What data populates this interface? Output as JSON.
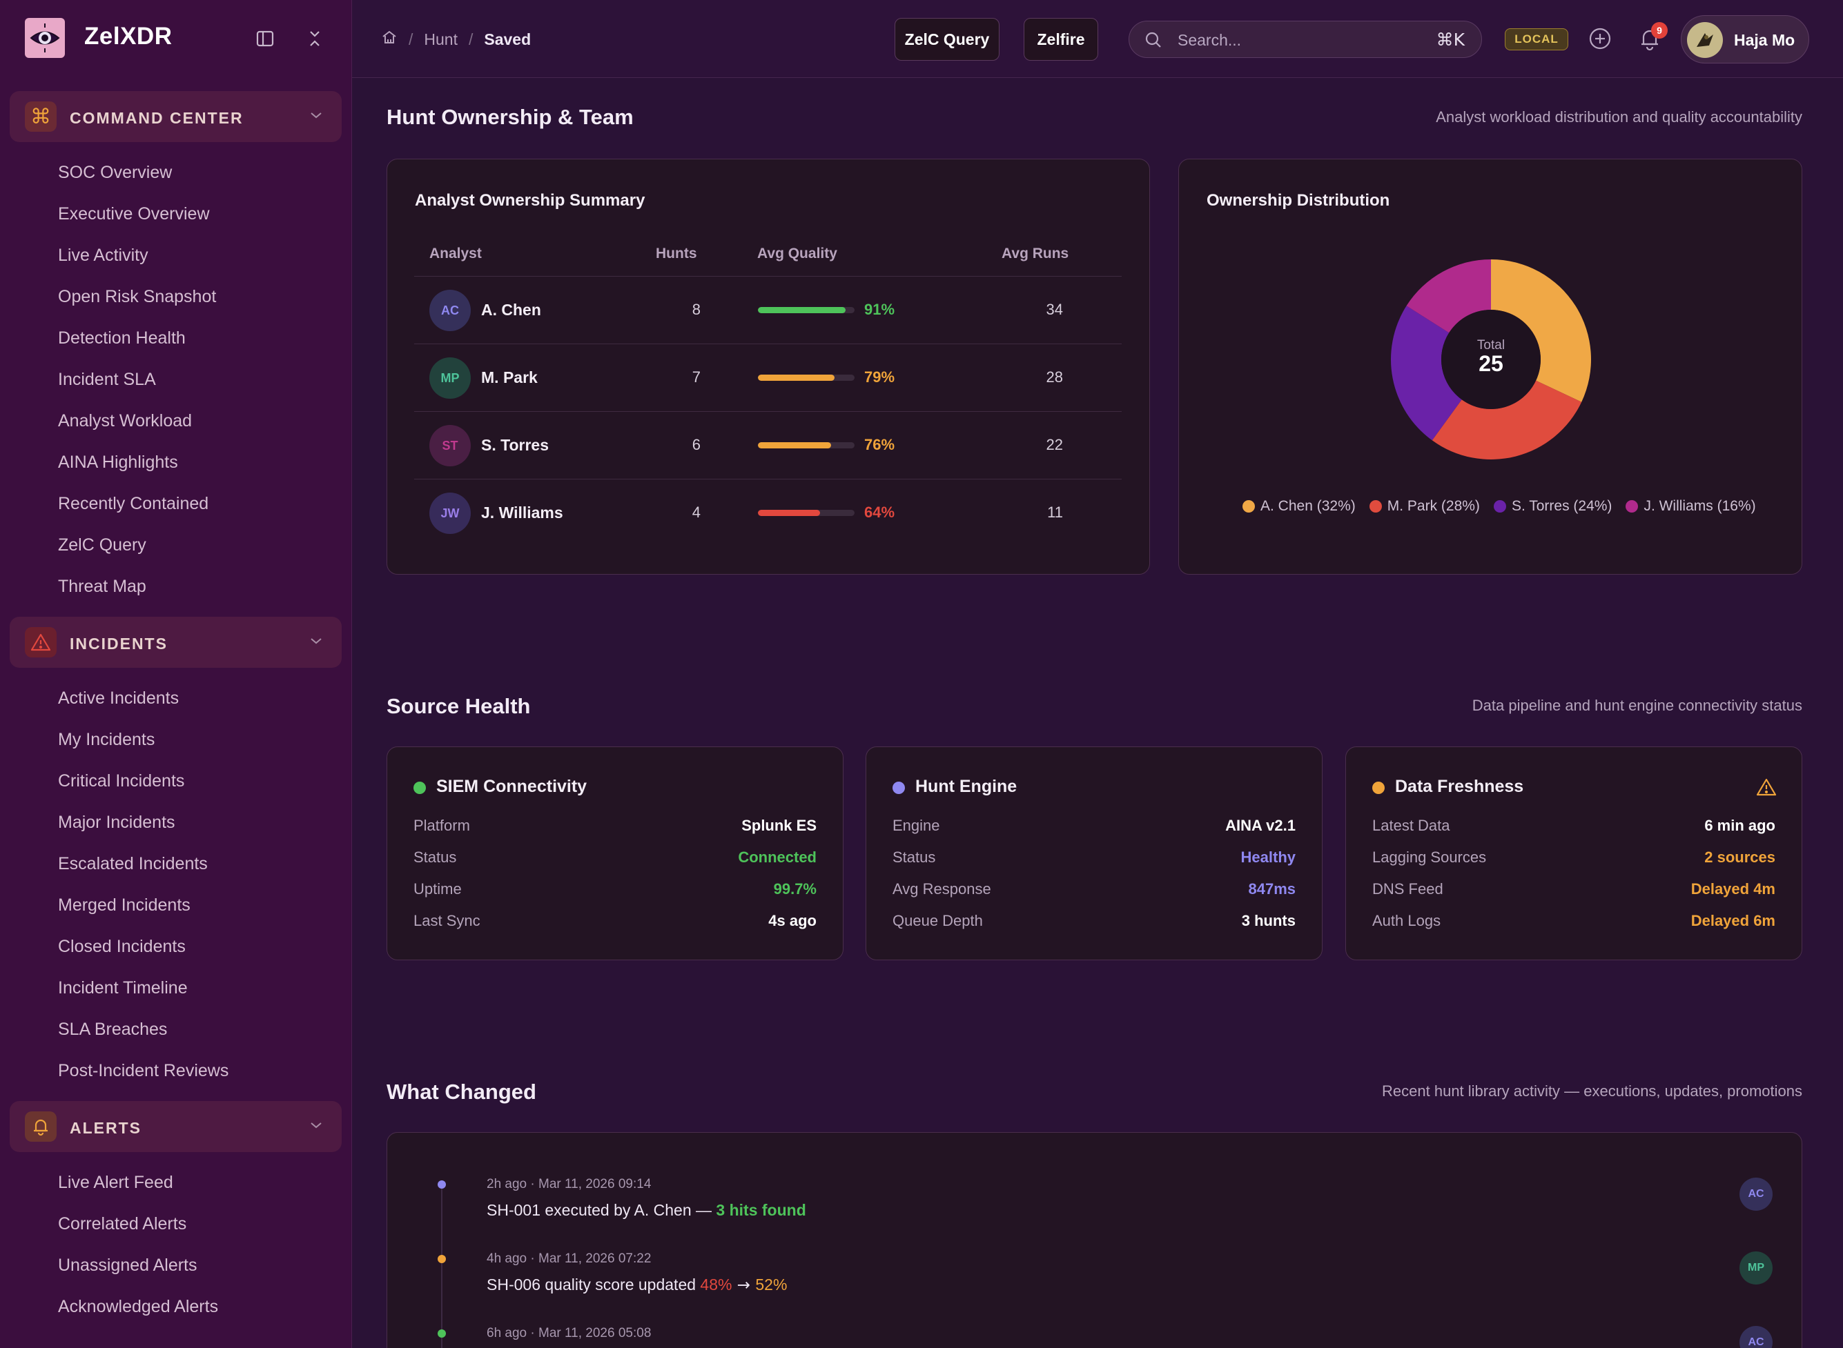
{
  "app": {
    "name": "ZelXDR"
  },
  "sidebar": {
    "groups": [
      {
        "label": "COMMAND CENTER",
        "items": [
          "SOC Overview",
          "Executive Overview",
          "Live Activity",
          "Open Risk Snapshot",
          "Detection Health",
          "Incident SLA",
          "Analyst Workload",
          "AINA Highlights",
          "Recently Contained",
          "ZelC Query",
          "Threat Map"
        ]
      },
      {
        "label": "INCIDENTS",
        "items": [
          "Active Incidents",
          "My Incidents",
          "Critical Incidents",
          "Major Incidents",
          "Escalated Incidents",
          "Merged Incidents",
          "Closed Incidents",
          "Incident Timeline",
          "SLA Breaches",
          "Post-Incident Reviews"
        ]
      },
      {
        "label": "ALERTS",
        "items": [
          "Live Alert Feed",
          "Correlated Alerts",
          "Unassigned Alerts",
          "Acknowledged Alerts"
        ]
      }
    ]
  },
  "topbar": {
    "breadcrumb": {
      "parent": "Hunt",
      "current": "Saved"
    },
    "zelc_query_label": "ZelC Query",
    "zelfire_label": "Zelfire",
    "search_placeholder": "Search...",
    "search_shortcut": "⌘K",
    "env_badge": "LOCAL",
    "notification_count": "9",
    "user_name": "Haja Mo"
  },
  "ownership": {
    "title": "Hunt Ownership & Team",
    "subtitle": "Analyst workload distribution and quality accountability",
    "summary": {
      "title": "Analyst Ownership Summary",
      "columns": {
        "analyst": "Analyst",
        "hunts": "Hunts",
        "quality": "Avg Quality",
        "runs": "Avg Runs"
      },
      "rows": [
        {
          "initials": "AC",
          "name": "A. Chen",
          "hunts": "8",
          "quality_pct": 91,
          "quality": "91%",
          "runs": "34",
          "color": "#4ec35a"
        },
        {
          "initials": "MP",
          "name": "M. Park",
          "hunts": "7",
          "quality_pct": 79,
          "quality": "79%",
          "runs": "28",
          "color": "#f0a43a"
        },
        {
          "initials": "ST",
          "name": "S. Torres",
          "hunts": "6",
          "quality_pct": 76,
          "quality": "76%",
          "runs": "22",
          "color": "#f0a43a"
        },
        {
          "initials": "JW",
          "name": "J. Williams",
          "hunts": "4",
          "quality_pct": 64,
          "quality": "64%",
          "runs": "11",
          "color": "#e2483e"
        }
      ]
    },
    "distribution": {
      "title": "Ownership Distribution",
      "total_label": "Total",
      "total_value": "25",
      "legend": [
        {
          "label": "A. Chen (32%)",
          "color": "#f0a846"
        },
        {
          "label": "M. Park (28%)",
          "color": "#e04c3e"
        },
        {
          "label": "S. Torres (24%)",
          "color": "#6a22a8"
        },
        {
          "label": "J. Williams (16%)",
          "color": "#b02a8c"
        }
      ]
    }
  },
  "chart_data": {
    "type": "pie",
    "title": "Ownership Distribution",
    "categories": [
      "A. Chen",
      "M. Park",
      "S. Torres",
      "J. Williams"
    ],
    "values": [
      32,
      28,
      24,
      16
    ],
    "center_label": "Total 25",
    "legend": "bottom"
  },
  "source_health": {
    "title": "Source Health",
    "subtitle": "Data pipeline and hunt engine connectivity status",
    "cards": [
      {
        "title": "SIEM Connectivity",
        "dot": "#4ec35a",
        "rows": [
          {
            "k": "Platform",
            "v": "Splunk ES",
            "c": "#ffffff"
          },
          {
            "k": "Status",
            "v": "Connected",
            "c": "#4ec35a"
          },
          {
            "k": "Uptime",
            "v": "99.7%",
            "c": "#4ec35a"
          },
          {
            "k": "Last Sync",
            "v": "4s ago",
            "c": "#ffffff"
          }
        ]
      },
      {
        "title": "Hunt Engine",
        "dot": "#8f88f0",
        "rows": [
          {
            "k": "Engine",
            "v": "AINA v2.1",
            "c": "#ffffff"
          },
          {
            "k": "Status",
            "v": "Healthy",
            "c": "#8f88f0"
          },
          {
            "k": "Avg Response",
            "v": "847ms",
            "c": "#8f88f0"
          },
          {
            "k": "Queue Depth",
            "v": "3 hunts",
            "c": "#ffffff"
          }
        ]
      },
      {
        "title": "Data Freshness",
        "dot": "#f0a43a",
        "rows": [
          {
            "k": "Latest Data",
            "v": "6 min ago",
            "c": "#ffffff"
          },
          {
            "k": "Lagging Sources",
            "v": "2 sources",
            "c": "#f0a43a"
          },
          {
            "k": "DNS Feed",
            "v": "Delayed 4m",
            "c": "#f0a43a"
          },
          {
            "k": "Auth Logs",
            "v": "Delayed 6m",
            "c": "#f0a43a"
          }
        ]
      }
    ]
  },
  "changes": {
    "title": "What Changed",
    "subtitle": "Recent hunt library activity — executions, updates, promotions",
    "events": [
      {
        "ago": "2h ago",
        "sep": "·",
        "date": "Mar 11, 2026 09:14",
        "text": "SH-001 executed by A. Chen — ",
        "highlight": "3 hits found",
        "avatar": "AC",
        "dot": "#8f88f0"
      },
      {
        "ago": "4h ago",
        "sep": "·",
        "date": "Mar 11, 2026 07:22",
        "text": "SH-006 quality score updated ",
        "from": "48%",
        "arrow": " → ",
        "to": "52%",
        "avatar": "MP",
        "dot": "#f0a43a"
      },
      {
        "ago": "6h ago",
        "sep": "·",
        "date": "Mar 11, 2026 05:08",
        "avatar": "AC",
        "dot": "#4ec35a"
      }
    ]
  }
}
